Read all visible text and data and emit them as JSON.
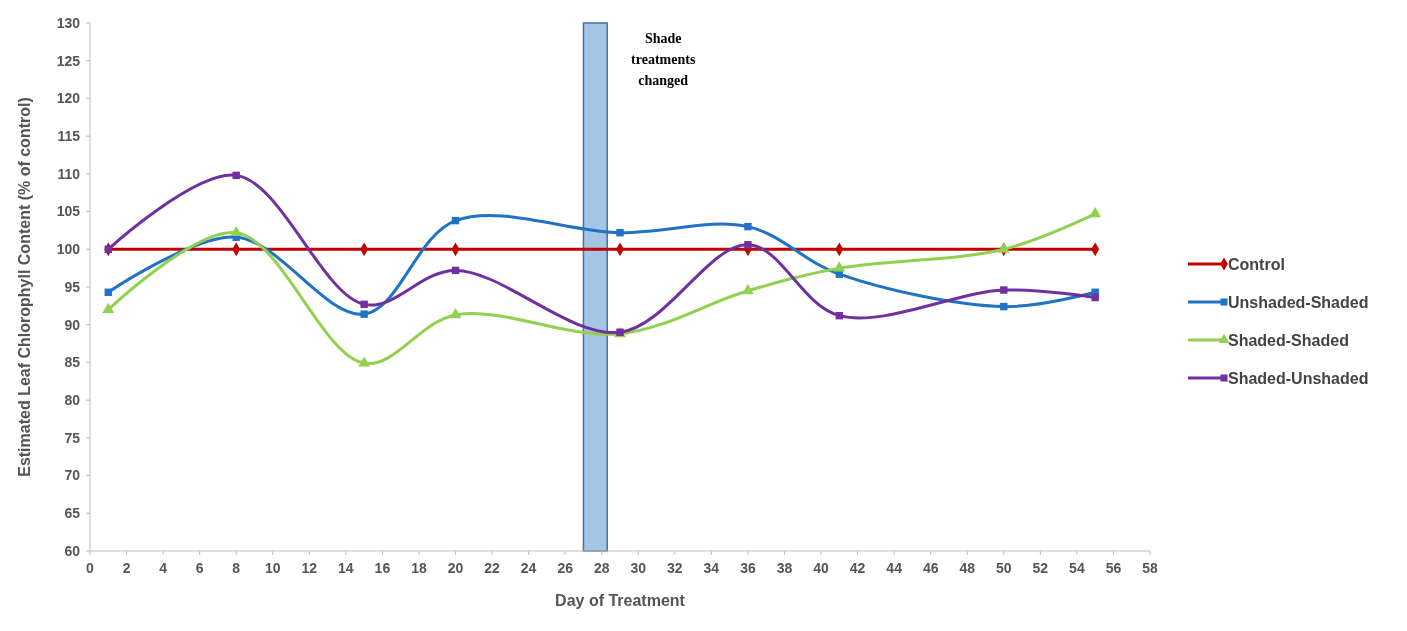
{
  "chart_data": {
    "type": "line",
    "xlabel": "Day of Treatment",
    "ylabel": "Estimated Leaf Chlorophyll Content (% of control)",
    "xlim": [
      0,
      58
    ],
    "xticks": [
      0,
      2,
      4,
      6,
      8,
      10,
      12,
      14,
      16,
      18,
      20,
      22,
      24,
      26,
      28,
      30,
      32,
      34,
      36,
      38,
      40,
      42,
      44,
      46,
      48,
      50,
      52,
      54,
      56,
      58
    ],
    "ylim": [
      60,
      130
    ],
    "yticks": [
      60,
      65,
      70,
      75,
      80,
      85,
      90,
      95,
      100,
      105,
      110,
      115,
      120,
      125,
      130
    ],
    "x": [
      1,
      8,
      15,
      20,
      29,
      36,
      41,
      50,
      55
    ],
    "series": [
      {
        "name": "Control",
        "color": "#c00000",
        "marker": "diamond",
        "values": [
          100,
          100,
          100,
          100,
          100,
          100,
          100,
          100,
          100
        ]
      },
      {
        "name": "Unshaded-Shaded",
        "color": "#1f72c4",
        "marker": "square",
        "values": [
          94.3,
          101.6,
          91.4,
          103.8,
          102.2,
          103.0,
          96.7,
          92.4,
          94.3
        ]
      },
      {
        "name": "Shaded-Shaded",
        "color": "#92d050",
        "marker": "triangle",
        "values": [
          92.0,
          102.2,
          84.9,
          91.3,
          88.8,
          94.5,
          97.5,
          100,
          104.7
        ]
      },
      {
        "name": "Shaded-Unshaded",
        "color": "#7030a0",
        "marker": "square",
        "values": [
          100,
          109.8,
          92.7,
          97.2,
          89.0,
          100.6,
          91.2,
          94.6,
          93.6
        ]
      }
    ],
    "bands": [
      {
        "axis": "x",
        "from": 27,
        "to": 28.3,
        "label": "Shade treatments changed",
        "color": "#a4c6e4"
      }
    ],
    "grid": false,
    "legend": "right"
  }
}
